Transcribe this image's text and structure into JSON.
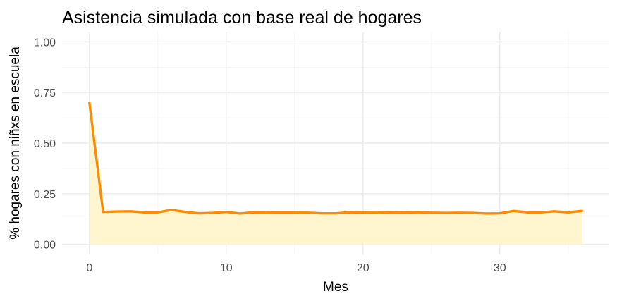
{
  "chart_data": {
    "type": "area",
    "title": "Asistencia simulada con base real de hogares",
    "xlabel": "Mes",
    "ylabel": "% hogares con niñxs en escuela",
    "x": [
      0,
      1,
      2,
      3,
      4,
      5,
      6,
      7,
      8,
      9,
      10,
      11,
      12,
      13,
      14,
      15,
      16,
      17,
      18,
      19,
      20,
      21,
      22,
      23,
      24,
      25,
      26,
      27,
      28,
      29,
      30,
      31,
      32,
      33,
      34,
      35,
      36
    ],
    "series": [
      {
        "values": [
          0.7,
          0.16,
          0.162,
          0.163,
          0.158,
          0.158,
          0.17,
          0.16,
          0.153,
          0.155,
          0.16,
          0.152,
          0.158,
          0.158,
          0.157,
          0.157,
          0.156,
          0.153,
          0.153,
          0.158,
          0.157,
          0.156,
          0.158,
          0.157,
          0.158,
          0.156,
          0.155,
          0.156,
          0.155,
          0.152,
          0.153,
          0.165,
          0.158,
          0.158,
          0.163,
          0.158,
          0.165
        ],
        "color": "#FF8C00",
        "fill_color": "#FFF6CF"
      }
    ],
    "xlim": [
      -2,
      38
    ],
    "ylim": [
      -0.05,
      1.05
    ],
    "x_ticks": [
      0,
      10,
      20,
      30
    ],
    "x_tick_labels": [
      "0",
      "10",
      "20",
      "30"
    ],
    "y_ticks": [
      0,
      0.25,
      0.5,
      0.75,
      1.0
    ],
    "y_tick_labels": [
      "0.00",
      "0.25",
      "0.50",
      "0.75",
      "1.00"
    ],
    "grid": true,
    "legend": "none"
  }
}
